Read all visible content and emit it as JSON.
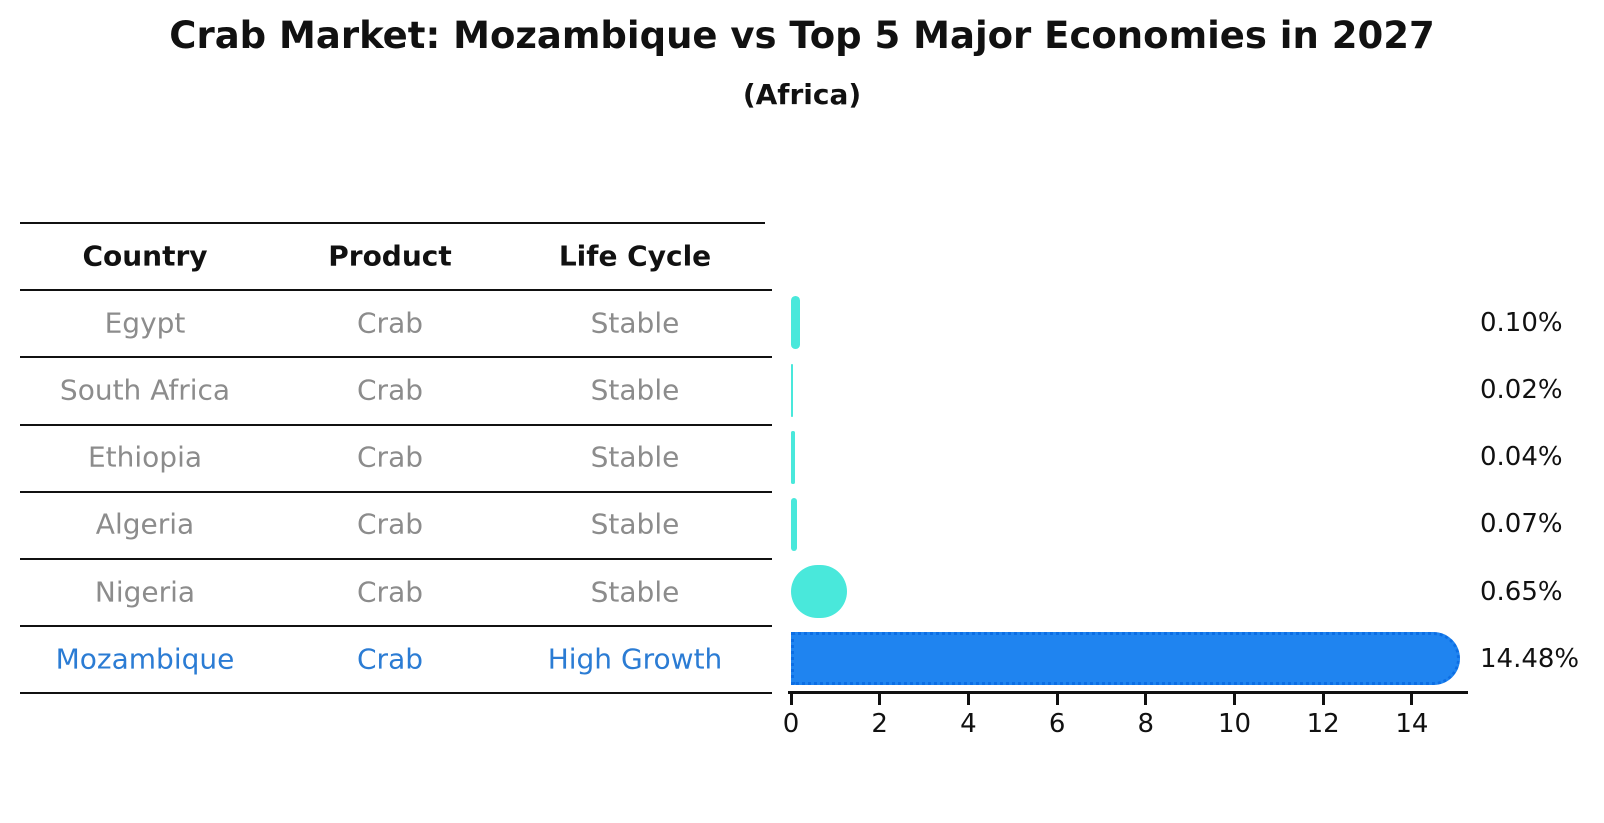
{
  "title": "Crab Market: Mozambique vs Top 5 Major Economies in 2027",
  "subtitle": "(Africa)",
  "table": {
    "headers": [
      "Country",
      "Product",
      "Life Cycle"
    ],
    "rows": [
      {
        "country": "Egypt",
        "product": "Crab",
        "life_cycle": "Stable",
        "highlight": false
      },
      {
        "country": "South Africa",
        "product": "Crab",
        "life_cycle": "Stable",
        "highlight": false
      },
      {
        "country": "Ethiopia",
        "product": "Crab",
        "life_cycle": "Stable",
        "highlight": false
      },
      {
        "country": "Algeria",
        "product": "Crab",
        "life_cycle": "Stable",
        "highlight": false
      },
      {
        "country": "Nigeria",
        "product": "Crab",
        "life_cycle": "Stable",
        "highlight": false
      },
      {
        "country": "Mozambique",
        "product": "Crab",
        "life_cycle": "High Growth",
        "highlight": true
      }
    ]
  },
  "chart_data": {
    "type": "bar",
    "orientation": "horizontal",
    "title": "Crab Market: Mozambique vs Top 5 Major Economies in 2027",
    "subtitle": "(Africa)",
    "categories": [
      "Egypt",
      "South Africa",
      "Ethiopia",
      "Algeria",
      "Nigeria",
      "Mozambique"
    ],
    "values": [
      0.1,
      0.02,
      0.04,
      0.07,
      0.65,
      14.48
    ],
    "value_labels": [
      "0.10%",
      "0.02%",
      "0.04%",
      "0.07%",
      "0.65%",
      "14.48%"
    ],
    "highlight_index": 5,
    "x_ticks": [
      0,
      2,
      4,
      6,
      8,
      10,
      12,
      14
    ],
    "x_tick_labels": [
      "0",
      "2",
      "4",
      "6",
      "8",
      "10",
      "12",
      "14"
    ],
    "xlim": [
      0,
      15.3
    ],
    "xlabel": "",
    "ylabel": "",
    "grid": false,
    "legend": null,
    "colors": {
      "bar_default": "#49E8DB",
      "bar_highlight": "#1F84F0",
      "bar_highlight_edge": "#0C6EE4",
      "highlight_text": "#2B7CD4",
      "row_text": "#8C8C8C",
      "axis": "#111111"
    }
  }
}
